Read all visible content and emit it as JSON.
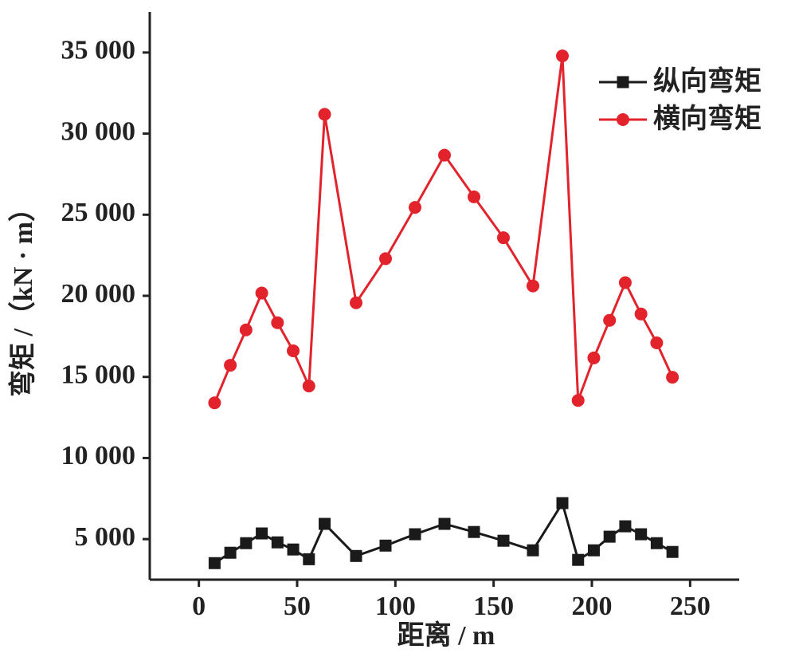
{
  "chart_data": {
    "type": "line",
    "x_label": "距离 / m",
    "y_label": "弯矩 /（kN · m）",
    "x": [
      8,
      16,
      24,
      32,
      40,
      48,
      56,
      64,
      80,
      95,
      110,
      125,
      140,
      155,
      170,
      185,
      193,
      201,
      209,
      217,
      225,
      233,
      241
    ],
    "series": [
      {
        "name": "纵向弯矩",
        "color": "#1a1a1a",
        "marker": "square",
        "values": [
          3520,
          4160,
          4750,
          5350,
          4800,
          4360,
          3760,
          5940,
          3960,
          4600,
          5300,
          5940,
          5440,
          4900,
          4310,
          7220,
          3720,
          4310,
          5150,
          5790,
          5300,
          4750,
          4210
        ]
      },
      {
        "name": "横向弯矩",
        "color": "#e3232c",
        "marker": "circle",
        "values": [
          13400,
          15720,
          17900,
          20170,
          18340,
          16610,
          14440,
          31190,
          19570,
          22290,
          25450,
          28670,
          26100,
          23580,
          20610,
          34790,
          13550,
          16170,
          18490,
          20810,
          18880,
          17100,
          14980
        ]
      }
    ],
    "xlim": [
      -25,
      275
    ],
    "xticks": [
      0,
      50,
      100,
      150,
      200,
      250
    ],
    "ylim": [
      2500,
      37500
    ],
    "yticks": [
      {
        "value": 5000,
        "label": "5 000"
      },
      {
        "value": 10000,
        "label": "10 000"
      },
      {
        "value": 15000,
        "label": "15 000"
      },
      {
        "value": 20000,
        "label": "20 000"
      },
      {
        "value": 25000,
        "label": "25 000"
      },
      {
        "value": 30000,
        "label": "30 000"
      },
      {
        "value": 35000,
        "label": "35 000"
      }
    ],
    "legend": "upper right"
  }
}
